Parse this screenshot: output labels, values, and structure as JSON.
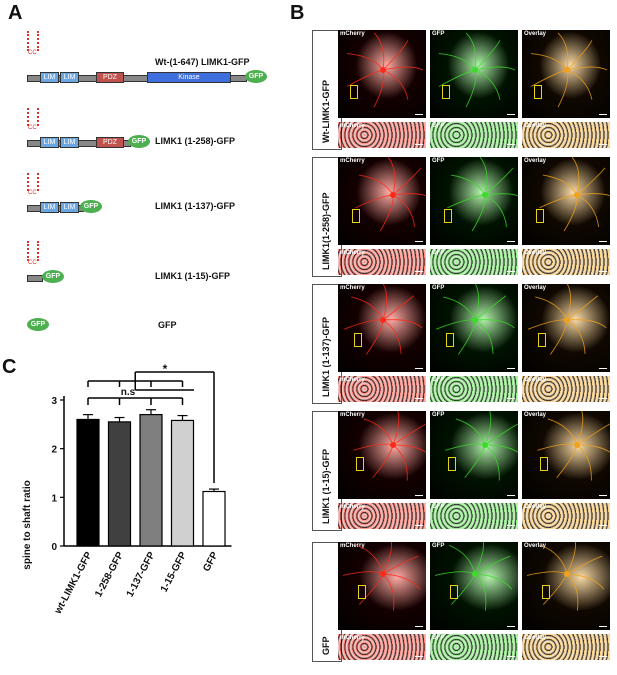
{
  "panel_a": {
    "letter": "A",
    "cc_label": "CC",
    "constructs": [
      {
        "label": "Wt-(1-647) LIMK1-GFP",
        "lim1": "LIM",
        "lim2": "LIM",
        "pdz": "PDZ",
        "kinase": "Kinase",
        "gfp": "GFP"
      },
      {
        "label": "LIMK1 (1-258)-GFP",
        "lim1": "LIM",
        "lim2": "LIM",
        "pdz": "PDZ",
        "gfp": "GFP"
      },
      {
        "label": "LIMK1 (1-137)-GFP",
        "lim1": "LIM",
        "lim2": "LIM",
        "gfp": "GFP"
      },
      {
        "label": "LIMK1 (1-15)-GFP",
        "gfp": "GFP"
      },
      {
        "label": "GFP",
        "gfp": "GFP"
      }
    ]
  },
  "panel_b": {
    "letter": "B",
    "channels": [
      "mCherry",
      "GFP",
      "Overlay"
    ],
    "rows": [
      "Wt-LIMK1-GFP",
      "LIMK1(1-258)-GFP",
      "LIMK1 (1-137)-GFP",
      "LIMK1 (1-15)-GFP",
      "GFP"
    ]
  },
  "panel_c": {
    "letter": "C",
    "significance_ns": "n.s",
    "significance_star": "*"
  },
  "chart_data": {
    "type": "bar",
    "categories": [
      "wt-LIMK1-GFP",
      "1-258-GFP",
      "1-137-GFP",
      "1-15-GFP",
      "GFP"
    ],
    "values": [
      2.6,
      2.55,
      2.7,
      2.58,
      1.12
    ],
    "errors": [
      0.1,
      0.09,
      0.1,
      0.1,
      0.05
    ],
    "colors": [
      "#000000",
      "#404040",
      "#7f7f7f",
      "#d0d0d0",
      "#ffffff"
    ],
    "ylabel": "spine to shaft ratio",
    "ylim": [
      0,
      3
    ],
    "yticks": [
      "0",
      "1",
      "2",
      "3"
    ],
    "grid": false
  }
}
